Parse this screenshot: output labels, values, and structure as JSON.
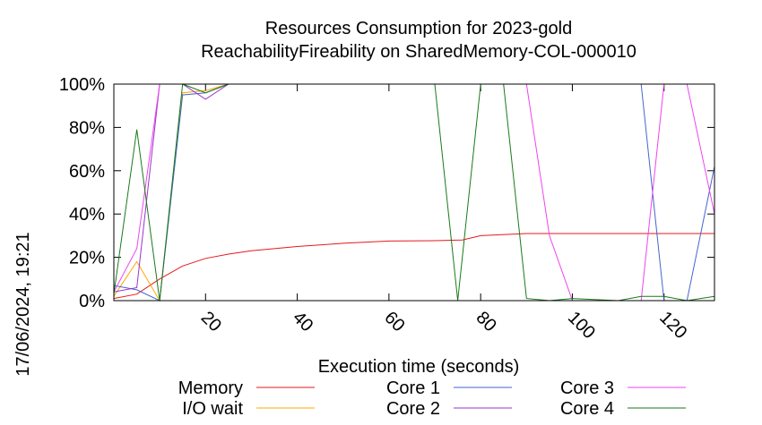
{
  "chart_data": {
    "type": "line",
    "title_line1": "Resources Consumption for 2023-gold",
    "title_line2": "ReachabilityFireability on SharedMemory-COL-000010",
    "xlabel": "Execution time (seconds)",
    "ylabel": "",
    "timestamp": "17/06/2024, 19:21",
    "xlim": [
      0,
      131
    ],
    "ylim": [
      0,
      100
    ],
    "xticks": [
      20,
      40,
      60,
      80,
      100,
      120
    ],
    "yticks": [
      0,
      20,
      40,
      60,
      80,
      100
    ],
    "ytick_labels": [
      "0%",
      "20%",
      "40%",
      "60%",
      "80%",
      "100%"
    ],
    "grid": false,
    "series": [
      {
        "name": "Memory",
        "color": "#e41a1c",
        "x": [
          0,
          5,
          10,
          15,
          20,
          25,
          30,
          40,
          50,
          60,
          70,
          76,
          80,
          90,
          100,
          110,
          120,
          131
        ],
        "y": [
          1,
          3,
          10,
          16,
          19.5,
          21.5,
          23,
          25,
          26.5,
          27.5,
          27.7,
          28,
          30,
          31,
          31,
          31,
          31,
          31
        ]
      },
      {
        "name": "I/O wait",
        "color": "#ffa500",
        "x": [
          0,
          5,
          10,
          15,
          20,
          25,
          131
        ],
        "y": [
          2,
          18,
          0,
          96,
          97,
          100,
          100
        ]
      },
      {
        "name": "Core 1",
        "color": "#4466cc",
        "x": [
          0,
          5,
          10,
          15,
          20,
          25,
          110,
          115,
          120,
          125,
          131
        ],
        "y": [
          7,
          5,
          0,
          95,
          96,
          100,
          100,
          100,
          0,
          0,
          62
        ]
      },
      {
        "name": "Core 2",
        "color": "#9933cc",
        "x": [
          0,
          5,
          10,
          15,
          20,
          25,
          131
        ],
        "y": [
          4,
          6,
          100,
          100,
          93,
          100,
          100
        ]
      },
      {
        "name": "Core 3",
        "color": "#ee44ee",
        "x": [
          0,
          5,
          10,
          15,
          20,
          25,
          90,
          95,
          100,
          110,
          115,
          120,
          125,
          131
        ],
        "y": [
          4,
          24,
          100,
          100,
          100,
          100,
          100,
          30,
          0,
          0,
          0,
          100,
          100,
          40
        ]
      },
      {
        "name": "Core 4",
        "color": "#1a7a1a",
        "x": [
          0,
          5,
          10,
          15,
          20,
          25,
          70,
          75,
          80,
          85,
          90,
          95,
          100,
          110,
          115,
          120,
          125,
          131
        ],
        "y": [
          3,
          79,
          0,
          100,
          96,
          100,
          100,
          0,
          100,
          100,
          1,
          0,
          1,
          0,
          2,
          2,
          0,
          2
        ]
      }
    ],
    "legend_placement": "bottom"
  }
}
